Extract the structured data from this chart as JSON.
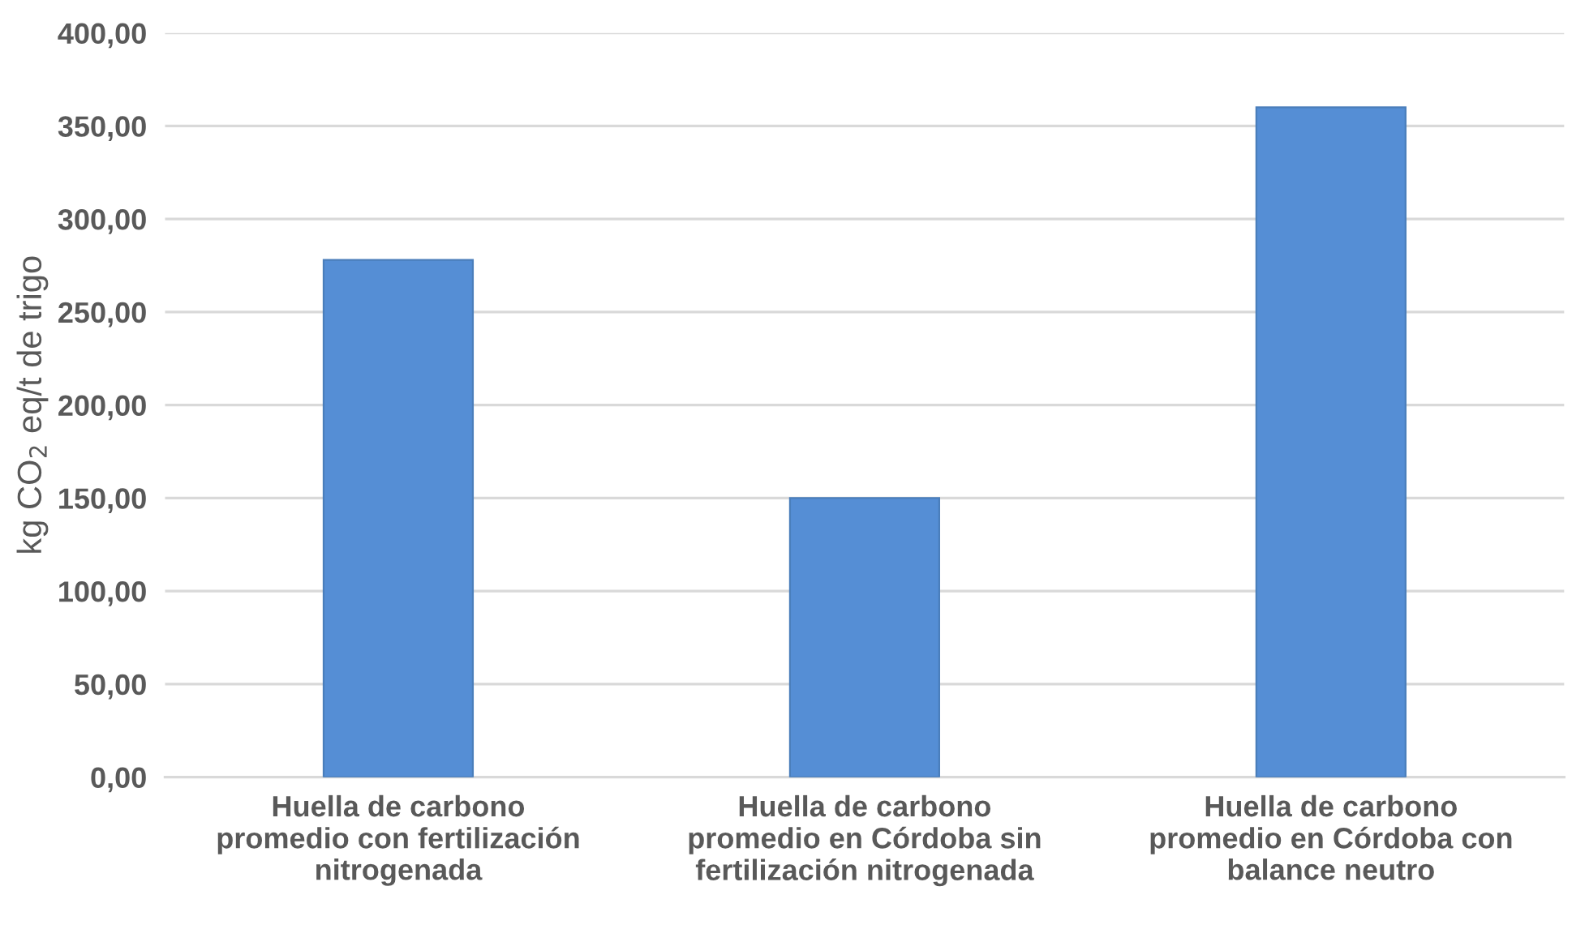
{
  "chart_data": {
    "type": "bar",
    "ylabel": "kg CO$_{2}$ eq/t de trigo",
    "categories": [
      "Huella de carbono\npromedio con fertilización\nnitrogenada",
      "Huella de carbono\npromedio en Córdoba sin\nfertilización nitrogenada",
      "Huella de carbono\npromedio en Córdoba con\nbalance neutro"
    ],
    "values": [
      278,
      150,
      360
    ],
    "color": "#558ed5",
    "ylim": [
      0,
      400
    ],
    "yticks": [
      {
        "value": 0,
        "label": "0,00"
      },
      {
        "value": 50,
        "label": "50,00"
      },
      {
        "value": 100,
        "label": "100,00"
      },
      {
        "value": 150,
        "label": "150,00"
      },
      {
        "value": 200,
        "label": "200,00"
      },
      {
        "value": 250,
        "label": "250,00"
      },
      {
        "value": 300,
        "label": "300,00"
      },
      {
        "value": 350,
        "label": "350,00"
      },
      {
        "value": 400,
        "label": "400,00"
      }
    ],
    "grid": "y"
  }
}
